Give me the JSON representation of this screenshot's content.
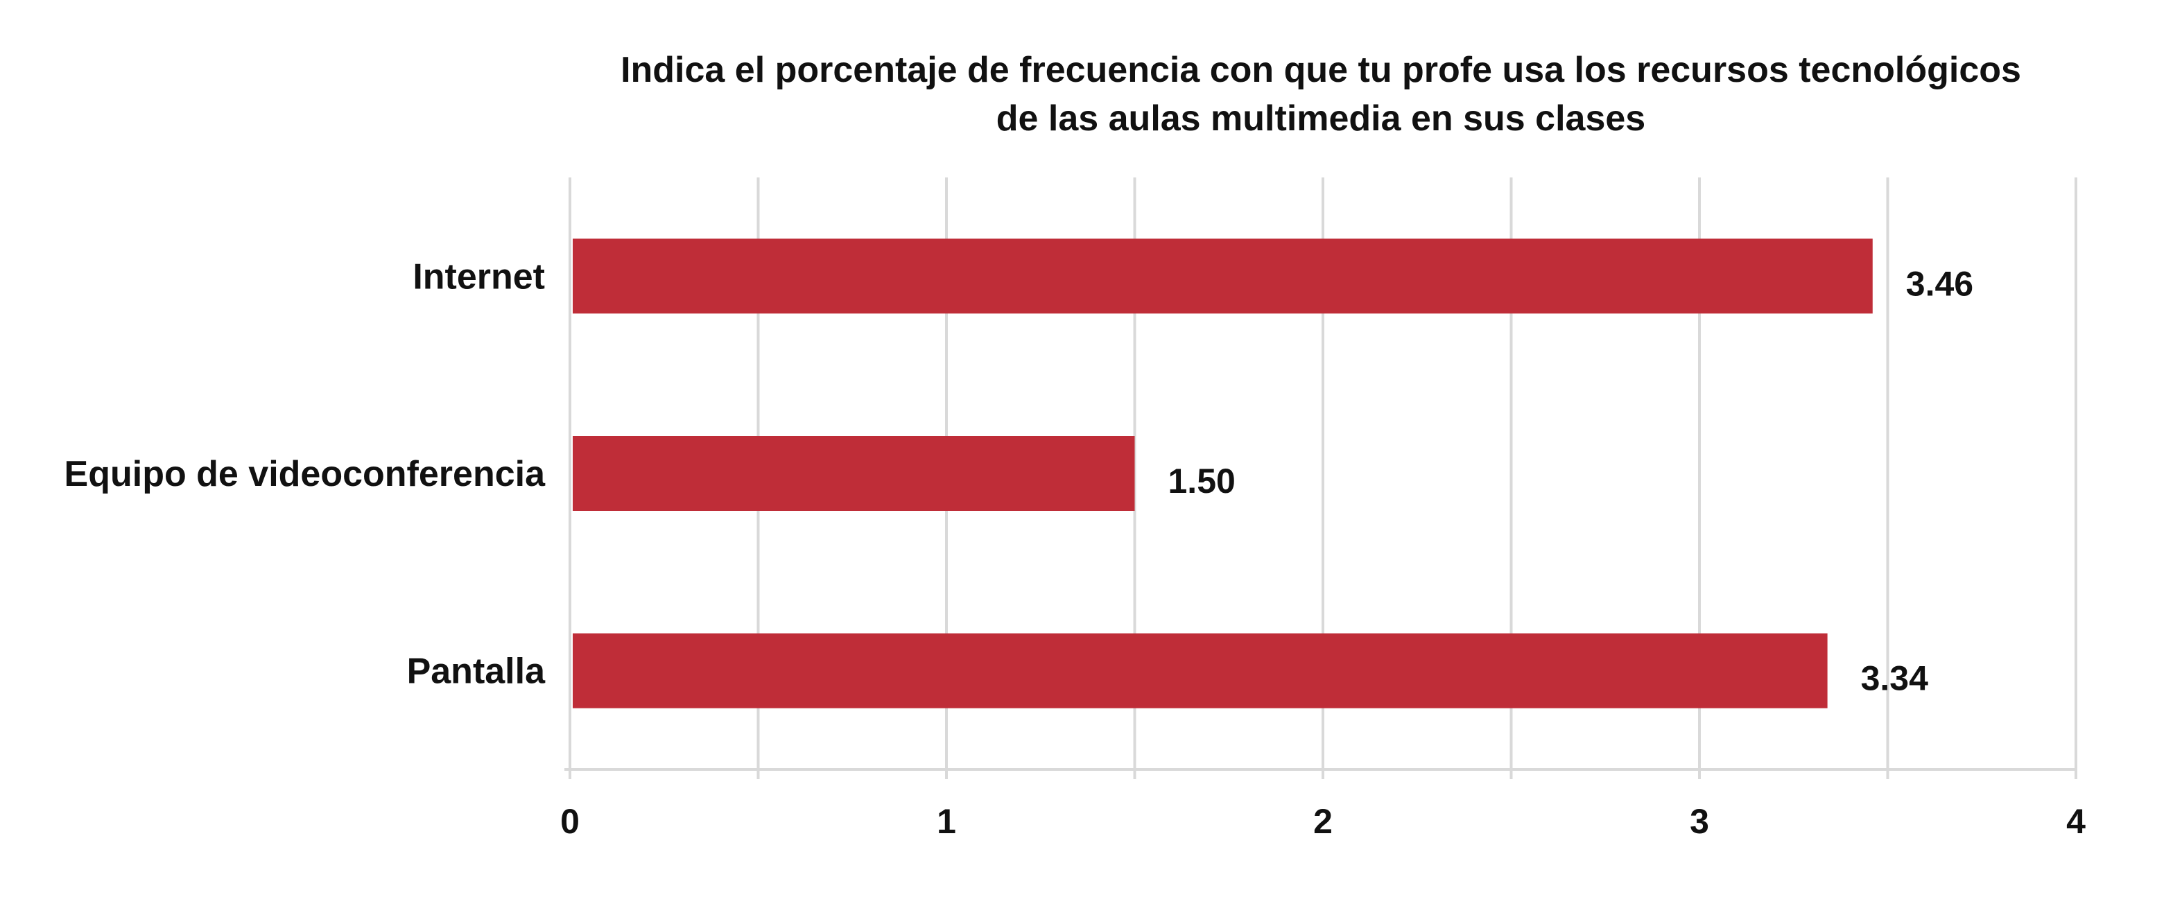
{
  "chart_data": {
    "type": "bar",
    "orientation": "horizontal",
    "title_lines": [
      "Indica el porcentaje de frecuencia con que tu profe usa los recursos tecnológicos",
      "de las aulas multimedia en sus clases"
    ],
    "categories": [
      "Internet",
      "Equipo de videoconferencia",
      "Pantalla"
    ],
    "values": [
      3.46,
      1.5,
      3.34
    ],
    "value_labels": [
      "3.46",
      "1.50",
      "3.34"
    ],
    "xlim": [
      0,
      4
    ],
    "major_ticks": [
      0,
      1,
      2,
      3,
      4
    ],
    "minor_gridlines": [
      0.5,
      1.5,
      2.5,
      3.5
    ],
    "grid": true,
    "legend": "none",
    "bar_color": "#bf2d38",
    "grid_color": "#d9d9d9"
  }
}
